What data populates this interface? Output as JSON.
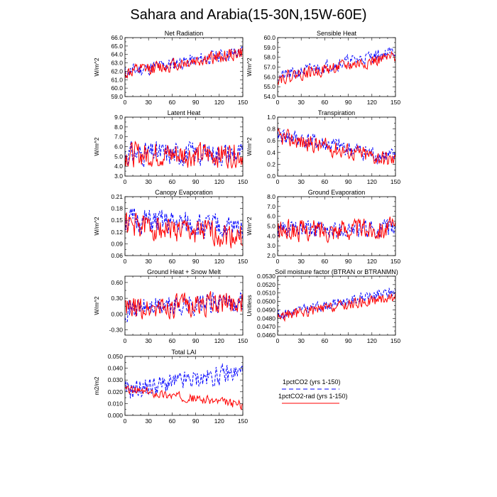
{
  "figure": {
    "title": "Sahara and Arabia(15-30N,15W-60E)"
  },
  "legend": {
    "items": [
      {
        "label": "1pctCO2 (yrs 1-150)",
        "color": "#0000ff",
        "style": "dashed"
      },
      {
        "label": "1pctCO2-rad (yrs 1-150)",
        "color": "#ff0000",
        "style": "solid"
      }
    ]
  },
  "chart_data": [
    {
      "type": "line",
      "title": "Net Radiation",
      "ylabel": "W/m^2",
      "xlim": [
        0,
        150
      ],
      "ylim": [
        59.0,
        66.0
      ],
      "xticks": [
        0,
        30,
        60,
        90,
        120,
        150
      ],
      "yticks": [
        "59.0",
        "60.0",
        "61.0",
        "62.0",
        "63.0",
        "64.0",
        "65.0",
        "66.0"
      ],
      "series": [
        {
          "name": "1pctCO2 (yrs 1-150)",
          "color": "#0000ff",
          "dash": "4,2",
          "trend": [
            [
              0,
              61.9
            ],
            [
              150,
              64.3
            ]
          ],
          "noise": 0.9,
          "seed": 11
        },
        {
          "name": "1pctCO2-rad (yrs 1-150)",
          "color": "#ff0000",
          "dash": "",
          "trend": [
            [
              0,
              61.8
            ],
            [
              150,
              64.2
            ]
          ],
          "noise": 0.9,
          "seed": 12
        }
      ]
    },
    {
      "type": "line",
      "title": "Sensible Heat",
      "ylabel": "W/m^2",
      "xlim": [
        0,
        150
      ],
      "ylim": [
        54.0,
        60.0
      ],
      "xticks": [
        0,
        30,
        60,
        90,
        120,
        150
      ],
      "yticks": [
        "54.0",
        "55.0",
        "56.0",
        "57.0",
        "58.0",
        "59.0",
        "60.0"
      ],
      "series": [
        {
          "name": "1pctCO2 (yrs 1-150)",
          "color": "#0000ff",
          "dash": "4,2",
          "trend": [
            [
              0,
              56.0
            ],
            [
              150,
              58.6
            ]
          ],
          "noise": 0.7,
          "seed": 21
        },
        {
          "name": "1pctCO2-rad (yrs 1-150)",
          "color": "#ff0000",
          "dash": "",
          "trend": [
            [
              0,
              55.9
            ],
            [
              150,
              58.0
            ]
          ],
          "noise": 0.7,
          "seed": 22
        }
      ]
    },
    {
      "type": "line",
      "title": "Latent Heat",
      "ylabel": "W/m^2",
      "xlim": [
        0,
        150
      ],
      "ylim": [
        3.0,
        9.0
      ],
      "xticks": [
        0,
        30,
        60,
        90,
        120,
        150
      ],
      "yticks": [
        "3.0",
        "4.0",
        "5.0",
        "6.0",
        "7.0",
        "8.0",
        "9.0"
      ],
      "series": [
        {
          "name": "1pctCO2 (yrs 1-150)",
          "color": "#0000ff",
          "dash": "4,2",
          "trend": [
            [
              0,
              5.3
            ],
            [
              150,
              5.3
            ]
          ],
          "noise": 1.3,
          "seed": 31
        },
        {
          "name": "1pctCO2-rad (yrs 1-150)",
          "color": "#ff0000",
          "dash": "",
          "trend": [
            [
              0,
              5.2
            ],
            [
              150,
              5.2
            ]
          ],
          "noise": 1.4,
          "seed": 32
        }
      ]
    },
    {
      "type": "line",
      "title": "Transpiration",
      "ylabel": "W/m^2",
      "xlim": [
        0,
        150
      ],
      "ylim": [
        0.0,
        1.0
      ],
      "xticks": [
        0,
        30,
        60,
        90,
        120,
        150
      ],
      "yticks": [
        "0.0",
        "0.2",
        "0.4",
        "0.6",
        "0.8",
        "1.0"
      ],
      "series": [
        {
          "name": "1pctCO2 (yrs 1-150)",
          "color": "#0000ff",
          "dash": "4,2",
          "trend": [
            [
              0,
              0.7
            ],
            [
              150,
              0.3
            ]
          ],
          "noise": 0.16,
          "seed": 41
        },
        {
          "name": "1pctCO2-rad (yrs 1-150)",
          "color": "#ff0000",
          "dash": "",
          "trend": [
            [
              0,
              0.66
            ],
            [
              150,
              0.26
            ]
          ],
          "noise": 0.16,
          "seed": 42
        }
      ]
    },
    {
      "type": "line",
      "title": "Canopy Evaporation",
      "ylabel": "W/m^2",
      "xlim": [
        0,
        150
      ],
      "ylim": [
        0.06,
        0.21
      ],
      "xticks": [
        0,
        30,
        60,
        90,
        120,
        150
      ],
      "yticks": [
        "0.06",
        "0.09",
        "0.12",
        "0.15",
        "0.18",
        "0.21"
      ],
      "series": [
        {
          "name": "1pctCO2 (yrs 1-150)",
          "color": "#0000ff",
          "dash": "4,2",
          "trend": [
            [
              0,
              0.15
            ],
            [
              150,
              0.128
            ]
          ],
          "noise": 0.035,
          "seed": 51
        },
        {
          "name": "1pctCO2-rad (yrs 1-150)",
          "color": "#ff0000",
          "dash": "",
          "trend": [
            [
              0,
              0.14
            ],
            [
              150,
              0.108
            ]
          ],
          "noise": 0.035,
          "seed": 52
        }
      ]
    },
    {
      "type": "line",
      "title": "Ground Evaporation",
      "ylabel": "W/m^2",
      "xlim": [
        0,
        150
      ],
      "ylim": [
        2.0,
        8.0
      ],
      "xticks": [
        0,
        30,
        60,
        90,
        120,
        150
      ],
      "yticks": [
        "2.0",
        "3.0",
        "4.0",
        "5.0",
        "6.0",
        "7.0",
        "8.0"
      ],
      "series": [
        {
          "name": "1pctCO2 (yrs 1-150)",
          "color": "#0000ff",
          "dash": "4,2",
          "trend": [
            [
              0,
              4.6
            ],
            [
              150,
              4.7
            ]
          ],
          "noise": 1.0,
          "seed": 61
        },
        {
          "name": "1pctCO2-rad (yrs 1-150)",
          "color": "#ff0000",
          "dash": "",
          "trend": [
            [
              0,
              4.5
            ],
            [
              150,
              4.8
            ]
          ],
          "noise": 1.2,
          "seed": 62
        }
      ]
    },
    {
      "type": "line",
      "title": "Ground Heat + Snow Melt",
      "ylabel": "W/m^2",
      "xlim": [
        0,
        150
      ],
      "ylim": [
        -0.4,
        0.72
      ],
      "xticks": [
        0,
        30,
        60,
        90,
        120,
        150
      ],
      "yticks": [
        "-0.30",
        "0.00",
        "0.30",
        "0.60"
      ],
      "series": [
        {
          "name": "1pctCO2 (yrs 1-150)",
          "color": "#0000ff",
          "dash": "4,2",
          "trend": [
            [
              0,
              0.1
            ],
            [
              150,
              0.24
            ]
          ],
          "noise": 0.22,
          "seed": 71
        },
        {
          "name": "1pctCO2-rad (yrs 1-150)",
          "color": "#ff0000",
          "dash": "",
          "trend": [
            [
              0,
              0.08
            ],
            [
              150,
              0.24
            ]
          ],
          "noise": 0.24,
          "seed": 72
        }
      ]
    },
    {
      "type": "line",
      "title": "Soil moisture factor (BTRAN or BTRANMN)",
      "ylabel": "Unitless",
      "xlim": [
        0,
        150
      ],
      "ylim": [
        0.046,
        0.053
      ],
      "xticks": [
        0,
        30,
        60,
        90,
        120,
        150
      ],
      "yticks": [
        "0.0460",
        "0.0470",
        "0.0480",
        "0.0490",
        "0.0500",
        "0.0510",
        "0.0520",
        "0.0530"
      ],
      "series": [
        {
          "name": "1pctCO2 (yrs 1-150)",
          "color": "#0000ff",
          "dash": "4,2",
          "trend": [
            [
              0,
              0.0484
            ],
            [
              150,
              0.0512
            ]
          ],
          "noise": 0.0007,
          "seed": 81
        },
        {
          "name": "1pctCO2-rad (yrs 1-150)",
          "color": "#ff0000",
          "dash": "",
          "trend": [
            [
              0,
              0.0482
            ],
            [
              150,
              0.0506
            ]
          ],
          "noise": 0.0007,
          "seed": 82
        }
      ]
    },
    {
      "type": "line",
      "title": "Total LAI",
      "ylabel": "m2/m2",
      "xlim": [
        0,
        150
      ],
      "ylim": [
        0.0,
        0.05
      ],
      "xticks": [
        0,
        30,
        60,
        90,
        120,
        150
      ],
      "yticks": [
        "0.000",
        "0.010",
        "0.020",
        "0.030",
        "0.040",
        "0.050"
      ],
      "series": [
        {
          "name": "1pctCO2 (yrs 1-150)",
          "color": "#0000ff",
          "dash": "4,2",
          "trend": [
            [
              0,
              0.021
            ],
            [
              150,
              0.037
            ]
          ],
          "noise": 0.009,
          "seed": 91
        },
        {
          "name": "1pctCO2-rad (yrs 1-150)",
          "color": "#ff0000",
          "dash": "",
          "trend": [
            [
              0,
              0.022
            ],
            [
              150,
              0.009
            ]
          ],
          "noise": 0.004,
          "seed": 92
        }
      ]
    }
  ]
}
